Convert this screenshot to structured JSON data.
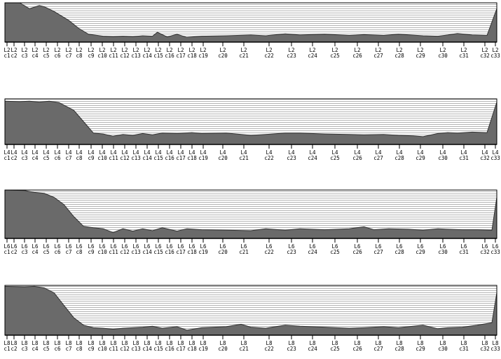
{
  "colors": {
    "fill": "#6a6a6a",
    "background_lines": "#b4b4b4",
    "frame": "#000000",
    "page": "#ffffff"
  },
  "chart_data": [
    {
      "type": "area",
      "panel_label": "L2",
      "categories": [
        "c1",
        "c2",
        "c3",
        "c4",
        "c5",
        "c6",
        "c7",
        "c8",
        "c9",
        "c10",
        "c11",
        "c12",
        "c13",
        "c14",
        "c15",
        "c16",
        "c17",
        "c18",
        "c19",
        "c20",
        "c21",
        "c22",
        "c23",
        "c24",
        "c25",
        "c26",
        "c27",
        "c28",
        "c29",
        "c30",
        "c31",
        "c32",
        "c33"
      ],
      "tick_labels_top": [
        "L2",
        "L2",
        "L2",
        "L2",
        "L2",
        "L2",
        "L2",
        "L2",
        "L2",
        "L2",
        "L2",
        "L2",
        "L2",
        "L2",
        "L2",
        "L2",
        "L2",
        "L2",
        "L2",
        "L2",
        "L2",
        "L2",
        "L2",
        "L2",
        "L2",
        "L2",
        "L2",
        "L2",
        "L2",
        "L2",
        "L2",
        "L2",
        "L2"
      ],
      "tick_labels_bottom": [
        "c1",
        "c2",
        "c3",
        "c4",
        "c5",
        "c6",
        "c7",
        "c8",
        "c9",
        "c10",
        "c11",
        "c12",
        "c13",
        "c14",
        "c15",
        "c16",
        "c17",
        "c18",
        "c19",
        "c20",
        "c21",
        "c22",
        "c23",
        "c24",
        "c25",
        "c26",
        "c27",
        "c28",
        "c29",
        "c30",
        "c31",
        "c32",
        "c33"
      ],
      "series": [
        {
          "x": [
            0,
            0.03,
            0.05,
            0.07,
            0.08,
            0.1,
            0.13,
            0.15,
            0.17,
            0.2,
            0.22,
            0.24,
            0.26,
            0.28,
            0.3,
            0.31,
            0.33,
            0.35,
            0.37,
            0.4,
            0.45,
            0.5,
            0.53,
            0.57,
            0.6,
            0.65,
            0.7,
            0.73,
            0.77,
            0.8,
            0.85,
            0.88,
            0.9,
            0.92,
            0.95,
            0.98,
            1.0
          ],
          "values": [
            1.0,
            1.0,
            0.85,
            0.93,
            0.9,
            0.78,
            0.55,
            0.35,
            0.2,
            0.15,
            0.14,
            0.15,
            0.14,
            0.16,
            0.15,
            0.25,
            0.13,
            0.2,
            0.12,
            0.15,
            0.16,
            0.18,
            0.16,
            0.21,
            0.18,
            0.2,
            0.17,
            0.19,
            0.17,
            0.2,
            0.16,
            0.15,
            0.18,
            0.22,
            0.18,
            0.17,
            0.85
          ]
        }
      ]
    },
    {
      "type": "area",
      "panel_label": "L4",
      "categories": [
        "c1",
        "c2",
        "c3",
        "c4",
        "c5",
        "c6",
        "c7",
        "c8",
        "c9",
        "c10",
        "c11",
        "c12",
        "c13",
        "c14",
        "c15",
        "c16",
        "c17",
        "c18",
        "c19",
        "c20",
        "c21",
        "c22",
        "c23",
        "c24",
        "c25",
        "c26",
        "c27",
        "c28",
        "c29",
        "c30",
        "c31",
        "c32",
        "c33"
      ],
      "tick_labels_top": [
        "L4",
        "L4",
        "L4",
        "L4",
        "L4",
        "L4",
        "L4",
        "L4",
        "L4",
        "L4",
        "L4",
        "L4",
        "L4",
        "L4",
        "L4",
        "L4",
        "L4",
        "L4",
        "L4",
        "L4",
        "L4",
        "L4",
        "L4",
        "L4",
        "L4",
        "L4",
        "L4",
        "L4",
        "L4",
        "L4",
        "L4",
        "L4",
        "L4"
      ],
      "tick_labels_bottom": [
        "c1",
        "c2",
        "c3",
        "c4",
        "c5",
        "c6",
        "c7",
        "c8",
        "c9",
        "c10",
        "c11",
        "c12",
        "c13",
        "c14",
        "c15",
        "c16",
        "c17",
        "c18",
        "c19",
        "c20",
        "c21",
        "c22",
        "c23",
        "c24",
        "c25",
        "c26",
        "c27",
        "c28",
        "c29",
        "c30",
        "c31",
        "c32",
        "c33"
      ],
      "series": [
        {
          "x": [
            0,
            0.03,
            0.05,
            0.07,
            0.09,
            0.11,
            0.14,
            0.16,
            0.18,
            0.2,
            0.22,
            0.24,
            0.26,
            0.28,
            0.3,
            0.32,
            0.35,
            0.38,
            0.4,
            0.45,
            0.5,
            0.53,
            0.57,
            0.6,
            0.65,
            0.7,
            0.73,
            0.77,
            0.8,
            0.83,
            0.85,
            0.88,
            0.9,
            0.92,
            0.95,
            0.98,
            1.0
          ],
          "values": [
            0.95,
            0.94,
            0.95,
            0.93,
            0.95,
            0.92,
            0.75,
            0.5,
            0.25,
            0.23,
            0.18,
            0.22,
            0.2,
            0.24,
            0.21,
            0.25,
            0.24,
            0.26,
            0.24,
            0.25,
            0.2,
            0.22,
            0.25,
            0.25,
            0.23,
            0.22,
            0.21,
            0.22,
            0.2,
            0.19,
            0.17,
            0.24,
            0.26,
            0.25,
            0.27,
            0.26,
            0.93
          ]
        }
      ]
    },
    {
      "type": "area",
      "panel_label": "L6",
      "categories": [
        "c1",
        "c2",
        "c3",
        "c4",
        "c5",
        "c6",
        "c7",
        "c8",
        "c9",
        "c10",
        "c11",
        "c12",
        "c13",
        "c14",
        "c15",
        "c16",
        "c17",
        "c18",
        "c19",
        "c20",
        "c21",
        "c22",
        "c23",
        "c24",
        "c25",
        "c26",
        "c27",
        "c28",
        "c29",
        "c30",
        "c31",
        "c32",
        "c33"
      ],
      "tick_labels_top": [
        "L6",
        "L6",
        "L6",
        "L6",
        "L6",
        "L6",
        "L6",
        "L6",
        "L6",
        "L6",
        "L6",
        "L6",
        "L6",
        "L6",
        "L6",
        "L6",
        "L6",
        "L6",
        "L6",
        "L6",
        "L6",
        "L6",
        "L6",
        "L6",
        "L6",
        "L6",
        "L6",
        "L6",
        "L6",
        "L6",
        "L6",
        "L6",
        "L6"
      ],
      "tick_labels_bottom": [
        "c1",
        "c2",
        "c3",
        "c4",
        "c5",
        "c6",
        "c7",
        "c8",
        "c9",
        "c10",
        "c11",
        "c12",
        "c13",
        "c14",
        "c15",
        "c16",
        "c17",
        "c18",
        "c19",
        "c20",
        "c21",
        "c22",
        "c23",
        "c24",
        "c25",
        "c26",
        "c27",
        "c28",
        "c29",
        "c30",
        "c31",
        "c32",
        "c33"
      ],
      "series": [
        {
          "x": [
            0,
            0.04,
            0.06,
            0.08,
            0.1,
            0.12,
            0.14,
            0.16,
            0.18,
            0.2,
            0.22,
            0.24,
            0.26,
            0.28,
            0.3,
            0.32,
            0.35,
            0.37,
            0.4,
            0.45,
            0.5,
            0.53,
            0.57,
            0.6,
            0.65,
            0.7,
            0.73,
            0.75,
            0.78,
            0.82,
            0.85,
            0.88,
            0.9,
            0.93,
            0.96,
            0.99,
            1.0
          ],
          "values": [
            1.0,
            0.99,
            0.95,
            0.93,
            0.85,
            0.7,
            0.45,
            0.25,
            0.22,
            0.2,
            0.12,
            0.2,
            0.15,
            0.2,
            0.16,
            0.22,
            0.15,
            0.2,
            0.18,
            0.17,
            0.16,
            0.2,
            0.17,
            0.2,
            0.18,
            0.2,
            0.24,
            0.18,
            0.2,
            0.19,
            0.17,
            0.2,
            0.19,
            0.18,
            0.18,
            0.17,
            0.85
          ]
        }
      ]
    },
    {
      "type": "area",
      "panel_label": "L8",
      "categories": [
        "c1",
        "c2",
        "c3",
        "c4",
        "c5",
        "c6",
        "c7",
        "c8",
        "c9",
        "c10",
        "c11",
        "c12",
        "c13",
        "c14",
        "c15",
        "c16",
        "c17",
        "c18",
        "c19",
        "c20",
        "c21",
        "c22",
        "c23",
        "c24",
        "c25",
        "c26",
        "c27",
        "c28",
        "c29",
        "c30",
        "c31",
        "c32",
        "c33"
      ],
      "tick_labels_top": [
        "L8",
        "L8",
        "L8",
        "L8",
        "L8",
        "L8",
        "L8",
        "L8",
        "L8",
        "L8",
        "L8",
        "L8",
        "L8",
        "L8",
        "L8",
        "L8",
        "L8",
        "L8",
        "L8",
        "L8",
        "L8",
        "L8",
        "L8",
        "L8",
        "L8",
        "L8",
        "L8",
        "L8",
        "L8",
        "L8",
        "L8",
        "L8",
        "L8"
      ],
      "tick_labels_bottom": [
        "c1",
        "c2",
        "c3",
        "c4",
        "c5",
        "c6",
        "c7",
        "c8",
        "c9",
        "c10",
        "c11",
        "c12",
        "c13",
        "c14",
        "c15",
        "c16",
        "c17",
        "c18",
        "c19",
        "c20",
        "c21",
        "c22",
        "c23",
        "c24",
        "c25",
        "c26",
        "c27",
        "c28",
        "c29",
        "c30",
        "c31",
        "c32",
        "c33"
      ],
      "series": [
        {
          "x": [
            0,
            0.04,
            0.06,
            0.08,
            0.1,
            0.12,
            0.14,
            0.16,
            0.18,
            0.2,
            0.22,
            0.24,
            0.26,
            0.28,
            0.3,
            0.32,
            0.35,
            0.37,
            0.4,
            0.45,
            0.48,
            0.5,
            0.53,
            0.57,
            0.6,
            0.65,
            0.7,
            0.73,
            0.77,
            0.8,
            0.85,
            0.88,
            0.9,
            0.93,
            0.96,
            0.99,
            1.0
          ],
          "values": [
            0.98,
            0.97,
            0.98,
            0.95,
            0.85,
            0.6,
            0.35,
            0.2,
            0.15,
            0.14,
            0.12,
            0.14,
            0.15,
            0.16,
            0.18,
            0.14,
            0.17,
            0.1,
            0.15,
            0.17,
            0.22,
            0.16,
            0.14,
            0.2,
            0.18,
            0.16,
            0.14,
            0.15,
            0.17,
            0.15,
            0.2,
            0.13,
            0.15,
            0.16,
            0.2,
            0.25,
            0.85
          ]
        }
      ]
    }
  ]
}
